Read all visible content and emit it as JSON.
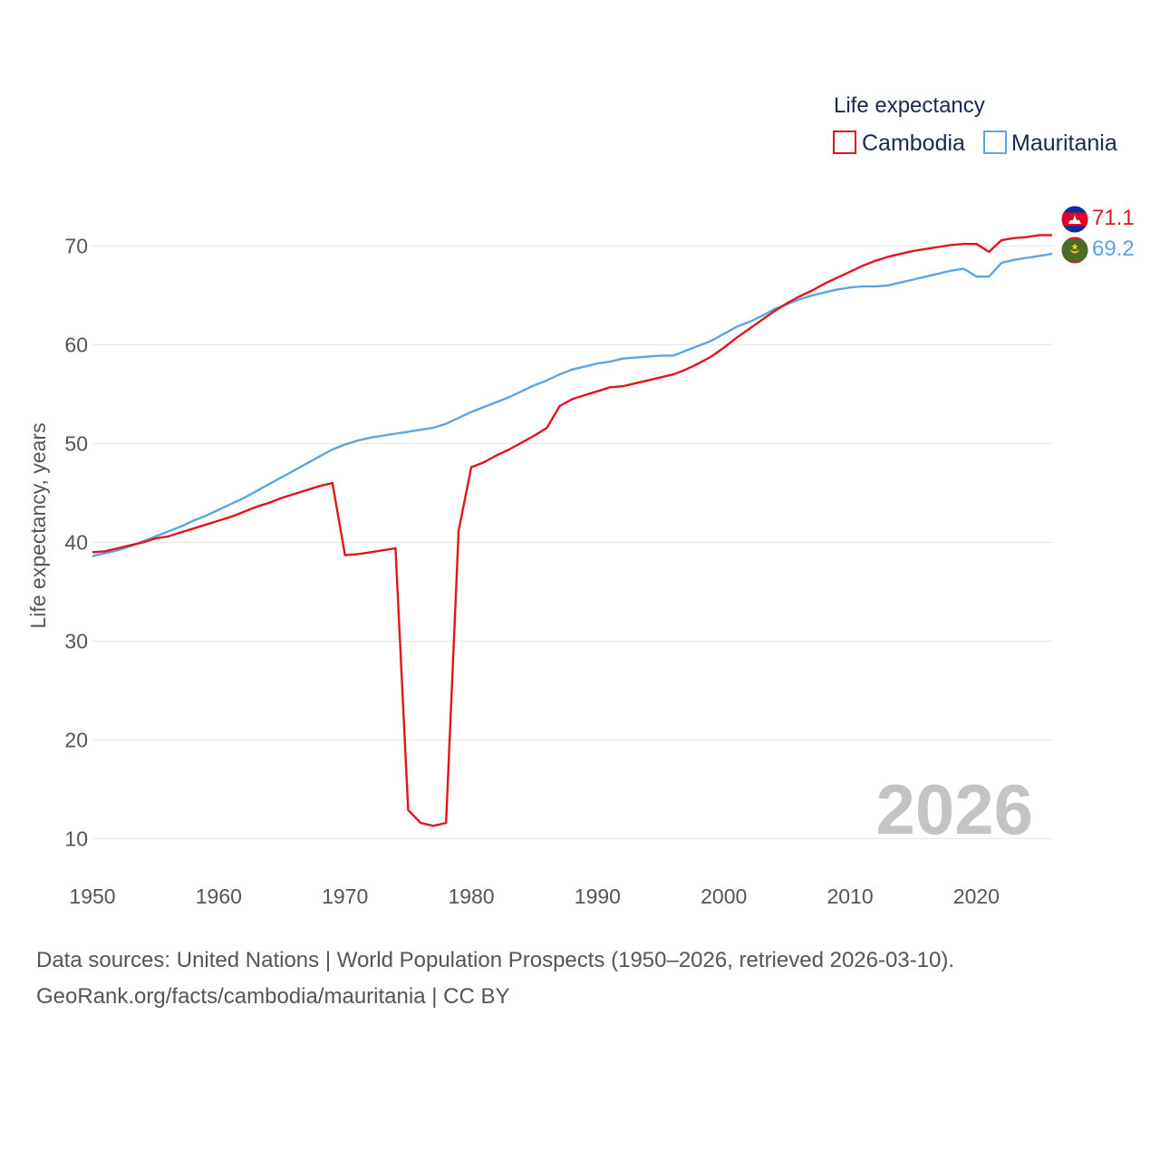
{
  "chart_data": {
    "type": "line",
    "legend_title": "Life expectancy",
    "ylabel": "Life expectancy, years",
    "xlabel": "",
    "xlim": [
      1950,
      2026
    ],
    "ylim": [
      5,
      76
    ],
    "x_ticks": [
      1950,
      1960,
      1970,
      1980,
      1990,
      2000,
      2010,
      2020
    ],
    "y_ticks": [
      10,
      20,
      30,
      40,
      50,
      60,
      70
    ],
    "grid": true,
    "legend_position": "top-right",
    "year_label": "2026",
    "series": [
      {
        "name": "Cambodia",
        "color": "#e3141b",
        "end_label": "71.1",
        "points": [
          [
            1950,
            39.0
          ],
          [
            1951,
            39.1
          ],
          [
            1952,
            39.4
          ],
          [
            1953,
            39.7
          ],
          [
            1954,
            40.0
          ],
          [
            1955,
            40.4
          ],
          [
            1956,
            40.6
          ],
          [
            1957,
            41.0
          ],
          [
            1958,
            41.4
          ],
          [
            1959,
            41.8
          ],
          [
            1960,
            42.2
          ],
          [
            1961,
            42.6
          ],
          [
            1962,
            43.1
          ],
          [
            1963,
            43.6
          ],
          [
            1964,
            44.0
          ],
          [
            1965,
            44.5
          ],
          [
            1966,
            44.9
          ],
          [
            1967,
            45.3
          ],
          [
            1968,
            45.7
          ],
          [
            1969,
            46.0
          ],
          [
            1970,
            38.7
          ],
          [
            1971,
            38.8
          ],
          [
            1972,
            39.0
          ],
          [
            1973,
            39.2
          ],
          [
            1974,
            39.4
          ],
          [
            1975,
            12.9
          ],
          [
            1976,
            11.6
          ],
          [
            1977,
            11.3
          ],
          [
            1978,
            11.6
          ],
          [
            1979,
            41.2
          ],
          [
            1980,
            47.6
          ],
          [
            1981,
            48.1
          ],
          [
            1982,
            48.8
          ],
          [
            1983,
            49.4
          ],
          [
            1984,
            50.1
          ],
          [
            1985,
            50.8
          ],
          [
            1986,
            51.6
          ],
          [
            1987,
            53.8
          ],
          [
            1988,
            54.5
          ],
          [
            1989,
            54.9
          ],
          [
            1990,
            55.3
          ],
          [
            1991,
            55.7
          ],
          [
            1992,
            55.8
          ],
          [
            1993,
            56.1
          ],
          [
            1994,
            56.4
          ],
          [
            1995,
            56.7
          ],
          [
            1996,
            57.0
          ],
          [
            1997,
            57.5
          ],
          [
            1998,
            58.1
          ],
          [
            1999,
            58.8
          ],
          [
            2000,
            59.7
          ],
          [
            2001,
            60.7
          ],
          [
            2002,
            61.6
          ],
          [
            2003,
            62.5
          ],
          [
            2004,
            63.4
          ],
          [
            2005,
            64.2
          ],
          [
            2006,
            64.9
          ],
          [
            2007,
            65.5
          ],
          [
            2008,
            66.2
          ],
          [
            2009,
            66.8
          ],
          [
            2010,
            67.4
          ],
          [
            2011,
            68.0
          ],
          [
            2012,
            68.5
          ],
          [
            2013,
            68.9
          ],
          [
            2014,
            69.2
          ],
          [
            2015,
            69.5
          ],
          [
            2016,
            69.7
          ],
          [
            2017,
            69.9
          ],
          [
            2018,
            70.1
          ],
          [
            2019,
            70.2
          ],
          [
            2020,
            70.2
          ],
          [
            2021,
            69.4
          ],
          [
            2022,
            70.6
          ],
          [
            2023,
            70.8
          ],
          [
            2024,
            70.9
          ],
          [
            2025,
            71.1
          ],
          [
            2026,
            71.1
          ]
        ]
      },
      {
        "name": "Mauritania",
        "color": "#5ba5e4",
        "end_label": "69.2",
        "points": [
          [
            1950,
            38.6
          ],
          [
            1951,
            38.9
          ],
          [
            1952,
            39.2
          ],
          [
            1953,
            39.6
          ],
          [
            1954,
            40.1
          ],
          [
            1955,
            40.6
          ],
          [
            1956,
            41.1
          ],
          [
            1957,
            41.6
          ],
          [
            1958,
            42.2
          ],
          [
            1959,
            42.7
          ],
          [
            1960,
            43.3
          ],
          [
            1961,
            43.9
          ],
          [
            1962,
            44.5
          ],
          [
            1963,
            45.2
          ],
          [
            1964,
            45.9
          ],
          [
            1965,
            46.6
          ],
          [
            1966,
            47.3
          ],
          [
            1967,
            48.0
          ],
          [
            1968,
            48.7
          ],
          [
            1969,
            49.4
          ],
          [
            1970,
            49.9
          ],
          [
            1971,
            50.3
          ],
          [
            1972,
            50.6
          ],
          [
            1973,
            50.8
          ],
          [
            1974,
            51.0
          ],
          [
            1975,
            51.2
          ],
          [
            1976,
            51.4
          ],
          [
            1977,
            51.6
          ],
          [
            1978,
            52.0
          ],
          [
            1979,
            52.6
          ],
          [
            1980,
            53.2
          ],
          [
            1981,
            53.7
          ],
          [
            1982,
            54.2
          ],
          [
            1983,
            54.7
          ],
          [
            1984,
            55.3
          ],
          [
            1985,
            55.9
          ],
          [
            1986,
            56.4
          ],
          [
            1987,
            57.0
          ],
          [
            1988,
            57.5
          ],
          [
            1989,
            57.8
          ],
          [
            1990,
            58.1
          ],
          [
            1991,
            58.3
          ],
          [
            1992,
            58.6
          ],
          [
            1993,
            58.7
          ],
          [
            1994,
            58.8
          ],
          [
            1995,
            58.9
          ],
          [
            1996,
            58.9
          ],
          [
            1997,
            59.4
          ],
          [
            1998,
            59.9
          ],
          [
            1999,
            60.4
          ],
          [
            2000,
            61.1
          ],
          [
            2001,
            61.8
          ],
          [
            2002,
            62.3
          ],
          [
            2003,
            62.9
          ],
          [
            2004,
            63.6
          ],
          [
            2005,
            64.1
          ],
          [
            2006,
            64.6
          ],
          [
            2007,
            65.0
          ],
          [
            2008,
            65.3
          ],
          [
            2009,
            65.6
          ],
          [
            2010,
            65.8
          ],
          [
            2011,
            65.9
          ],
          [
            2012,
            65.9
          ],
          [
            2013,
            66.0
          ],
          [
            2014,
            66.3
          ],
          [
            2015,
            66.6
          ],
          [
            2016,
            66.9
          ],
          [
            2017,
            67.2
          ],
          [
            2018,
            67.5
          ],
          [
            2019,
            67.7
          ],
          [
            2020,
            66.9
          ],
          [
            2021,
            66.9
          ],
          [
            2022,
            68.3
          ],
          [
            2023,
            68.6
          ],
          [
            2024,
            68.8
          ],
          [
            2025,
            69.0
          ],
          [
            2026,
            69.2
          ]
        ]
      }
    ]
  },
  "source": {
    "line1": "Data sources: United Nations | World Population Prospects (1950–2026, retrieved 2026-03-10).",
    "line2": "GeoRank.org/facts/cambodia/mauritania | CC BY"
  }
}
